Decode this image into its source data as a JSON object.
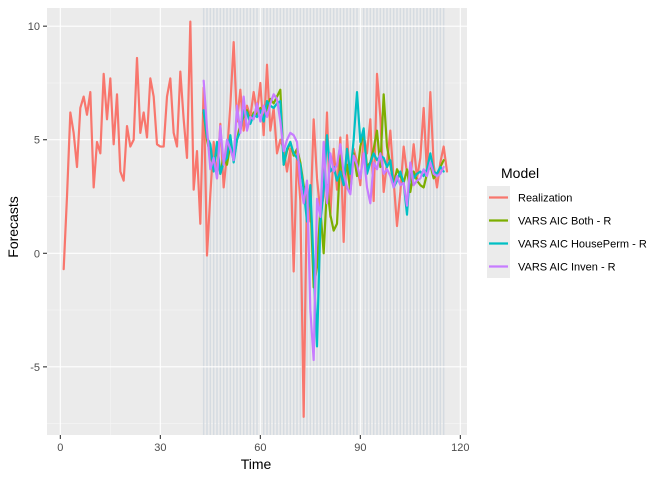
{
  "chart_data": {
    "type": "line",
    "xlabel": "Time",
    "ylabel": "Forecasts",
    "xlim": [
      -4,
      122
    ],
    "ylim": [
      -8.0,
      10.8
    ],
    "x_ticks": [
      0,
      30,
      60,
      90,
      120
    ],
    "y_ticks": [
      -5,
      0,
      5,
      10
    ],
    "x_tick_labels": [
      "0",
      "30",
      "60",
      "90",
      "120"
    ],
    "y_tick_labels": [
      "-5",
      "0",
      "5",
      "10"
    ],
    "grid": true,
    "legend_position": "right",
    "legend_title": "Model",
    "forecast_band": {
      "x_start": 43,
      "x_end": 115,
      "step": 1,
      "color": "#d5dbe1"
    },
    "series": [
      {
        "name": "Realization",
        "color": "#f8766d",
        "x_start": 1,
        "values": [
          -0.7,
          2.5,
          6.2,
          5.3,
          3.8,
          6.4,
          6.9,
          6.1,
          7.1,
          2.9,
          4.9,
          4.4,
          7.9,
          5.9,
          7.7,
          4.8,
          7.0,
          3.6,
          3.2,
          5.6,
          4.7,
          5.0,
          8.6,
          5.3,
          6.2,
          5.1,
          7.7,
          6.9,
          4.8,
          4.7,
          4.7,
          6.9,
          7.7,
          5.3,
          4.7,
          8.0,
          5.9,
          4.2,
          10.2,
          2.8,
          4.5,
          1.3,
          7.3,
          -0.1,
          2.6,
          4.9,
          3.3,
          5.7,
          2.9,
          4.4,
          6.5,
          9.3,
          5.8,
          7.2,
          5.4,
          6.5,
          6.0,
          7.1,
          6.2,
          7.5,
          5.2,
          8.3,
          5.4,
          6.4,
          4.4,
          5.0,
          4.6,
          3.6,
          4.6,
          -0.8,
          4.4,
          2.3,
          -7.2,
          3.1,
          1.4,
          5.9,
          3.3,
          1.8,
          2.5,
          6.2,
          1.6,
          4.6,
          2.8,
          5.1,
          0.5,
          5.2,
          2.9,
          4.6,
          4.0,
          3.0,
          5.2,
          4.4,
          5.9,
          2.3,
          7.9,
          6.0,
          2.7,
          4.0,
          5.4,
          3.2,
          1.2,
          2.7,
          4.7,
          3.5,
          3.2,
          4.8,
          3.3,
          4.2,
          6.4,
          3.5,
          7.1,
          3.9,
          2.9,
          4.0,
          4.7,
          3.6
        ]
      },
      {
        "name": "VARS AIC Both - R",
        "color": "#7cae00",
        "x_start": 43,
        "values": [
          6.2,
          5.0,
          4.3,
          3.8,
          4.6,
          3.5,
          4.3,
          3.9,
          4.8,
          4.1,
          5.0,
          5.7,
          6.0,
          6.3,
          5.8,
          6.2,
          6.1,
          6.4,
          5.9,
          6.4,
          6.8,
          6.6,
          6.9,
          7.2,
          3.9,
          4.5,
          4.9,
          4.3,
          4.6,
          4.0,
          3.0,
          2.2,
          2.5,
          -1.5,
          -0.6,
          2.0,
          0.0,
          3.0,
          1.7,
          1.0,
          1.3,
          4.3,
          3.3,
          3.9,
          2.7,
          4.4,
          3.4,
          4.7,
          5.3,
          3.8,
          4.0,
          4.6,
          5.4,
          3.8,
          7.0,
          4.7,
          3.9,
          3.0,
          3.7,
          3.4,
          3.1,
          3.7,
          2.7,
          3.6,
          3.2,
          3.0,
          2.9,
          3.5,
          3.9,
          3.3,
          3.5,
          3.8,
          4.1
        ]
      },
      {
        "name": "VARS AIC HousePerm - R",
        "color": "#00bfc4",
        "x_start": 43,
        "values": [
          6.3,
          5.1,
          4.8,
          3.6,
          4.9,
          3.5,
          4.0,
          4.2,
          5.2,
          4.0,
          5.0,
          5.4,
          6.3,
          6.2,
          5.7,
          6.1,
          6.0,
          6.3,
          5.8,
          6.7,
          6.5,
          6.4,
          6.6,
          6.7,
          3.9,
          4.6,
          4.9,
          4.4,
          4.2,
          3.9,
          2.8,
          1.4,
          3.0,
          -0.6,
          -4.1,
          1.3,
          2.8,
          5.2,
          3.6,
          3.8,
          3.2,
          3.6,
          3.0,
          4.6,
          3.5,
          5.0,
          7.1,
          4.9,
          5.5,
          3.5,
          4.0,
          4.4,
          4.1,
          4.3,
          4.2,
          3.8,
          4.1,
          2.9,
          3.2,
          3.6,
          3.1,
          1.7,
          3.8,
          3.3,
          3.5,
          3.6,
          3.4,
          3.7,
          4.4,
          3.6,
          3.5,
          3.8,
          3.6
        ]
      },
      {
        "name": "VARS AIC Inven - R",
        "color": "#c77cff",
        "x_start": 43,
        "values": [
          7.6,
          5.5,
          3.7,
          4.2,
          3.3,
          5.6,
          3.9,
          5.0,
          4.6,
          4.1,
          6.5,
          5.3,
          6.9,
          5.4,
          6.0,
          5.9,
          6.6,
          5.8,
          6.5,
          6.0,
          6.6,
          7.0,
          6.8,
          5.8,
          4.5,
          5.0,
          5.3,
          5.2,
          4.9,
          3.1,
          2.2,
          3.2,
          -2.5,
          -4.7,
          2.4,
          1.6,
          4.9,
          2.2,
          4.4,
          3.6,
          3.9,
          4.8,
          3.5,
          2.9,
          2.6,
          4.3,
          3.9,
          3.3,
          4.4,
          2.9,
          2.2,
          4.0,
          3.7,
          4.4,
          3.5,
          3.7,
          3.4,
          2.9,
          3.4,
          3.0,
          3.1,
          2.1,
          4.0,
          3.0,
          3.2,
          3.3,
          3.7,
          3.4,
          4.0,
          3.5,
          3.4,
          3.5,
          3.8
        ]
      }
    ]
  }
}
